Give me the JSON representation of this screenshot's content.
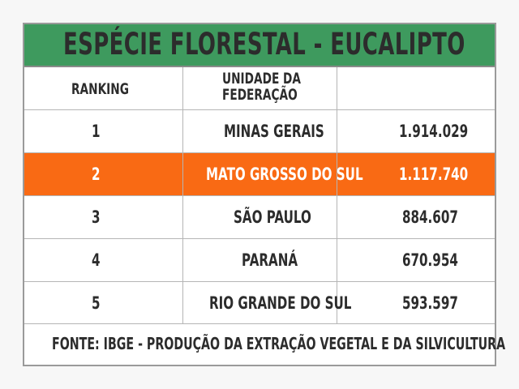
{
  "title": "ESPÉCIE FLORESTAL - EUCALIPTO",
  "header": {
    "ranking": "RANKING",
    "unidade_line1": "UNIDADE DA",
    "unidade_line2": "FEDERAÇÃO",
    "value": ""
  },
  "rows": [
    {
      "rank": "1",
      "state": "MINAS GERAIS",
      "value": "1.914.029",
      "highlighted": false
    },
    {
      "rank": "2",
      "state": "MATO GROSSO DO SUL",
      "value": "1.117.740",
      "highlighted": true
    },
    {
      "rank": "3",
      "state": "SÃO PAULO",
      "value": "884.607",
      "highlighted": false
    },
    {
      "rank": "4",
      "state": "PARANÁ",
      "value": "670.954",
      "highlighted": false
    },
    {
      "rank": "5",
      "state": "RIO GRANDE DO SUL",
      "value": "593.597",
      "highlighted": false
    }
  ],
  "footer": "FONTE: IBGE - PRODUÇÃO DA EXTRAÇÃO VEGETAL E DA SILVICULTURA",
  "colors": {
    "title_bg": "#3e9a5e",
    "highlight_bg": "#f96a14",
    "highlight_text": "#ffffff",
    "text": "#2c2c2c"
  }
}
